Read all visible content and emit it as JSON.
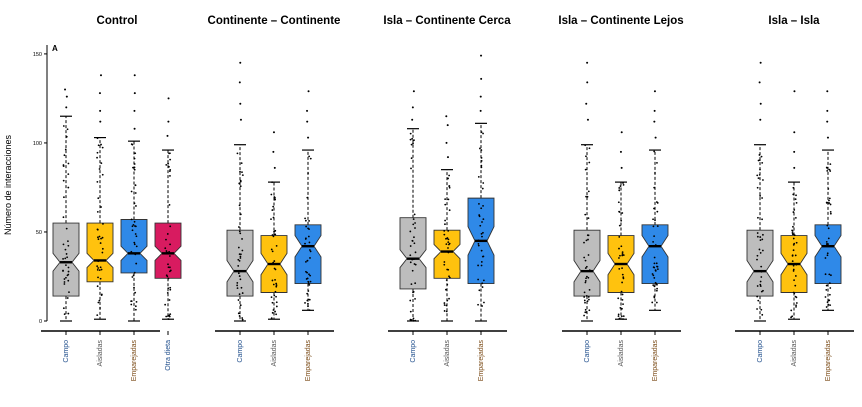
{
  "chart_data": {
    "type": "boxplot",
    "panel_letter": "A",
    "ylabel": "Número de interacciones",
    "ylim": [
      0,
      155
    ],
    "yticks": [
      0,
      50,
      100,
      150
    ],
    "colors": {
      "Campo": "#bdbdbd",
      "Aisladas": "#ffc20e",
      "Emparejadas": "#2f89e8",
      "Otra dieta": "#d81b60"
    },
    "label_colors": {
      "Campo": "#1f4e8c",
      "Aisladas": "#555555",
      "Emparejadas": "#7a4a16",
      "Otra dieta": "#1f4e8c"
    },
    "panels": [
      {
        "title": "Control",
        "groups": [
          {
            "label": "Campo",
            "min": 0,
            "q1": 14,
            "median": 33,
            "q3": 55,
            "max": 115,
            "notch": [
              28,
              38
            ],
            "outliers": [
              120,
              126,
              130
            ]
          },
          {
            "label": "Aisladas",
            "min": 1,
            "q1": 22,
            "median": 34,
            "q3": 55,
            "max": 103,
            "notch": [
              30,
              38
            ],
            "outliers": [
              112,
              118,
              128,
              138
            ]
          },
          {
            "label": "Emparejadas",
            "min": 0,
            "q1": 27,
            "median": 38,
            "q3": 57,
            "max": 101,
            "notch": [
              34,
              42
            ],
            "outliers": [
              108,
              118,
              128,
              138
            ]
          },
          {
            "label": "Otra dieta",
            "min": 1,
            "q1": 24,
            "median": 38,
            "q3": 55,
            "max": 96,
            "notch": [
              34,
              42
            ],
            "outliers": [
              104,
              112,
              125
            ]
          }
        ]
      },
      {
        "title": "Continente – Continente",
        "groups": [
          {
            "label": "Campo",
            "min": 0,
            "q1": 14,
            "median": 28,
            "q3": 51,
            "max": 99,
            "notch": [
              22,
              34
            ],
            "outliers": [
              113,
              122,
              134,
              145
            ]
          },
          {
            "label": "Aisladas",
            "min": 1,
            "q1": 16,
            "median": 32,
            "q3": 48,
            "max": 78,
            "notch": [
              26,
              38
            ],
            "outliers": [
              86,
              95,
              106
            ]
          },
          {
            "label": "Emparejadas",
            "min": 6,
            "q1": 21,
            "median": 42,
            "q3": 54,
            "max": 96,
            "notch": [
              36,
              48
            ],
            "outliers": [
              103,
              112,
              118,
              129
            ]
          }
        ]
      },
      {
        "title": "Isla – Continente Cerca",
        "groups": [
          {
            "label": "Campo",
            "min": 0,
            "q1": 18,
            "median": 35,
            "q3": 58,
            "max": 108,
            "notch": [
              30,
              40
            ],
            "outliers": [
              113,
              120,
              129
            ]
          },
          {
            "label": "Aisladas",
            "min": 0,
            "q1": 24,
            "median": 39,
            "q3": 51,
            "max": 85,
            "notch": [
              35,
              43
            ],
            "outliers": [
              92,
              100,
              110,
              115
            ]
          },
          {
            "label": "Emparejadas",
            "min": 0,
            "q1": 21,
            "median": 45,
            "q3": 69,
            "max": 111,
            "notch": [
              37,
              53
            ],
            "outliers": [
              118,
              126,
              136,
              149
            ]
          }
        ]
      },
      {
        "title": "Isla – Continente Lejos",
        "groups": [
          {
            "label": "Campo",
            "min": 0,
            "q1": 14,
            "median": 28,
            "q3": 51,
            "max": 99,
            "notch": [
              22,
              34
            ],
            "outliers": [
              113,
              122,
              134,
              145
            ]
          },
          {
            "label": "Aisladas",
            "min": 1,
            "q1": 16,
            "median": 32,
            "q3": 48,
            "max": 78,
            "notch": [
              26,
              38
            ],
            "outliers": [
              86,
              95,
              106
            ]
          },
          {
            "label": "Emparejadas",
            "min": 6,
            "q1": 21,
            "median": 42,
            "q3": 54,
            "max": 96,
            "notch": [
              36,
              48
            ],
            "outliers": [
              103,
              112,
              118,
              129
            ]
          }
        ]
      },
      {
        "title": "Isla – Isla",
        "groups": [
          {
            "label": "Campo",
            "min": 0,
            "q1": 14,
            "median": 28,
            "q3": 51,
            "max": 99,
            "notch": [
              22,
              34
            ],
            "outliers": [
              113,
              122,
              134,
              145
            ]
          },
          {
            "label": "Aisladas",
            "min": 1,
            "q1": 16,
            "median": 32,
            "q3": 48,
            "max": 78,
            "notch": [
              26,
              38
            ],
            "outliers": [
              86,
              95,
              106,
              129
            ]
          },
          {
            "label": "Emparejadas",
            "min": 6,
            "q1": 21,
            "median": 42,
            "q3": 54,
            "max": 96,
            "notch": [
              36,
              48
            ],
            "outliers": [
              103,
              112,
              118,
              129
            ]
          }
        ]
      }
    ]
  }
}
